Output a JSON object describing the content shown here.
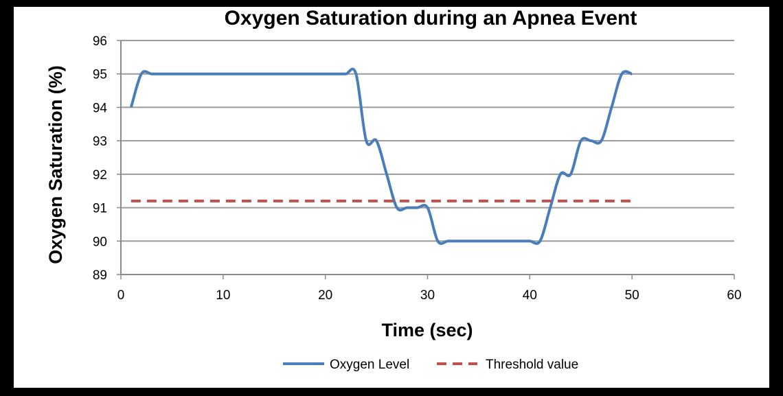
{
  "chart_data": {
    "type": "line",
    "title": "Oxygen Saturation during an Apnea Event",
    "xlabel": "Time (sec)",
    "ylabel": "Oxygen Saturation (%)",
    "xlim": [
      0,
      60
    ],
    "ylim": [
      89,
      96
    ],
    "xticks": [
      0,
      10,
      20,
      30,
      40,
      50,
      60
    ],
    "yticks": [
      89,
      90,
      91,
      92,
      93,
      94,
      95,
      96
    ],
    "grid": "horizontal",
    "legend_position": "bottom",
    "series": [
      {
        "name": "Oxygen Level",
        "color": "#4a7ebb",
        "style": "solid",
        "x": [
          1,
          2,
          3,
          4,
          5,
          6,
          7,
          8,
          9,
          10,
          11,
          12,
          13,
          14,
          15,
          16,
          17,
          18,
          19,
          20,
          21,
          22,
          23,
          24,
          25,
          26,
          27,
          28,
          29,
          30,
          31,
          32,
          33,
          34,
          35,
          36,
          37,
          38,
          39,
          40,
          41,
          42,
          43,
          44,
          45,
          46,
          47,
          48,
          49,
          50
        ],
        "y": [
          94,
          95,
          95,
          95,
          95,
          95,
          95,
          95,
          95,
          95,
          95,
          95,
          95,
          95,
          95,
          95,
          95,
          95,
          95,
          95,
          95,
          95,
          95,
          93,
          93,
          92,
          91,
          91,
          91,
          91,
          90,
          90,
          90,
          90,
          90,
          90,
          90,
          90,
          90,
          90,
          90,
          91,
          92,
          92,
          93,
          93,
          93,
          94,
          95,
          95
        ]
      },
      {
        "name": "Threshold value",
        "color": "#c0504d",
        "style": "dashed",
        "x": [
          1,
          50
        ],
        "y": [
          91.2,
          91.2
        ]
      }
    ]
  }
}
